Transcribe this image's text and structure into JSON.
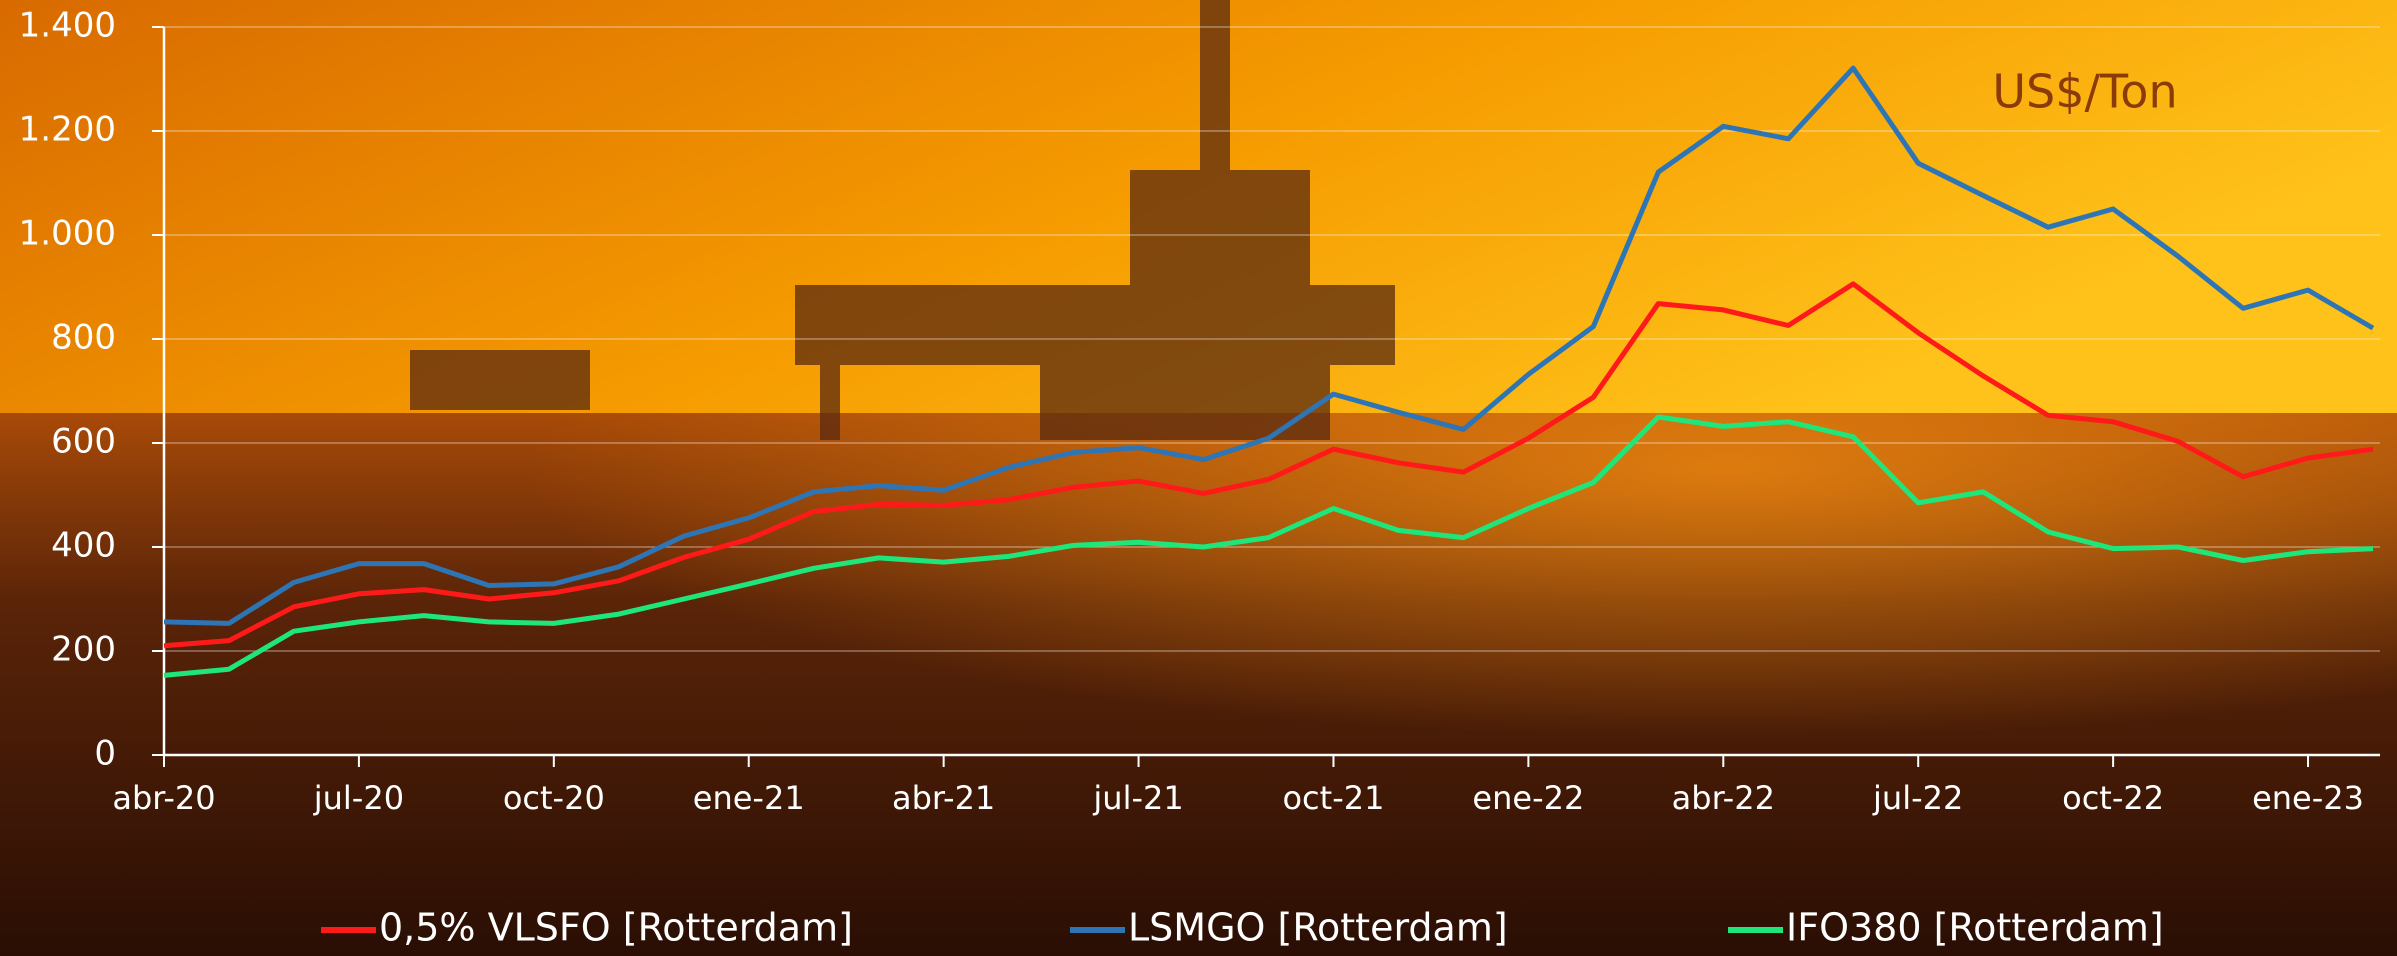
{
  "chart_data": {
    "type": "line",
    "annotation": "US$/Ton",
    "categories": [
      "abr-20",
      null,
      null,
      "jul-20",
      null,
      null,
      "oct-20",
      null,
      null,
      "ene-21",
      null,
      null,
      "abr-21",
      null,
      null,
      "jul-21",
      null,
      null,
      "oct-21",
      null,
      null,
      "ene-22",
      null,
      null,
      "abr-22",
      null,
      null,
      "jul-22",
      null,
      null,
      "oct-22",
      null,
      null,
      "ene-23",
      null
    ],
    "series": [
      {
        "name": "0,5% VLSFO [Rotterdam]",
        "color": "#ff1a1a",
        "values": [
          210,
          220,
          285,
          310,
          318,
          300,
          312,
          335,
          380,
          415,
          468,
          482,
          480,
          491,
          515,
          527,
          503,
          530,
          588,
          562,
          544,
          609,
          688,
          868,
          856,
          826,
          906,
          812,
          729,
          653,
          641,
          603,
          535,
          571,
          588
        ]
      },
      {
        "name": "LSMGO [Rotterdam]",
        "color": "#2e75b6",
        "values": [
          256,
          253,
          332,
          368,
          368,
          326,
          329,
          362,
          421,
          456,
          506,
          518,
          509,
          553,
          582,
          591,
          568,
          609,
          694,
          659,
          626,
          732,
          824,
          1121,
          1209,
          1185,
          1321,
          1138,
          1076,
          1015,
          1050,
          959,
          859,
          894,
          821
        ]
      },
      {
        "name": "IFO380 [Rotterdam]",
        "color": "#1ee67a",
        "values": [
          153,
          165,
          238,
          256,
          268,
          256,
          253,
          271,
          300,
          329,
          359,
          379,
          371,
          382,
          403,
          409,
          400,
          418,
          474,
          432,
          418,
          474,
          524,
          650,
          632,
          641,
          612,
          485,
          506,
          429,
          397,
          400,
          374,
          391,
          397
        ]
      }
    ],
    "ylim": [
      0,
      1400
    ],
    "yticks": [
      0,
      200,
      400,
      600,
      800,
      {
        "value": 1000,
        "label": "1.000"
      },
      {
        "value": 1200,
        "label": "1.200"
      },
      {
        "value": 1400,
        "label": "1.400"
      }
    ],
    "grid": true
  }
}
